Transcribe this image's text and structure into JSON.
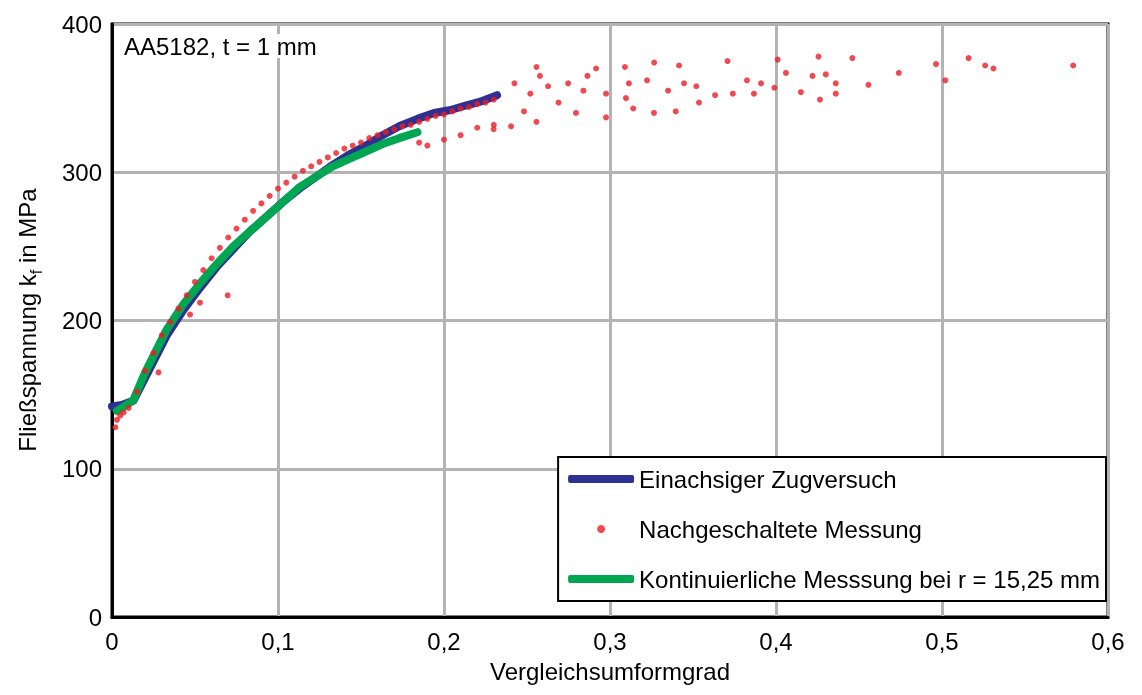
{
  "chart_data": {
    "type": "line",
    "xlabel": "Vergleichsumformgrad",
    "ylabel": "Fließspannung k$_{f}$ in MPa",
    "annotations": [
      "AA5182, t = 1 mm"
    ],
    "xlim": [
      0,
      0.6
    ],
    "xticks": [
      {
        "value": 0,
        "label": "0"
      },
      {
        "value": 0.1,
        "label": "0,1"
      },
      {
        "value": 0.2,
        "label": "0,2"
      },
      {
        "value": 0.3,
        "label": "0,3"
      },
      {
        "value": 0.4,
        "label": "0,4"
      },
      {
        "value": 0.5,
        "label": "0,5"
      },
      {
        "value": 0.6,
        "label": "0,6"
      }
    ],
    "ylim": [
      0,
      400
    ],
    "yticks": [
      0,
      100,
      200,
      300,
      400
    ],
    "grid": true,
    "legend": "bottom right",
    "series": [
      {
        "name": "Einachsiger Zugversuch",
        "marker": "none",
        "color": "#2e3192",
        "x": [
          0,
          0.006,
          0.013,
          0.023,
          0.033,
          0.043,
          0.053,
          0.063,
          0.073,
          0.083,
          0.093,
          0.103,
          0.113,
          0.123,
          0.133,
          0.143,
          0.153,
          0.163,
          0.173,
          0.184,
          0.194,
          0.204,
          0.213,
          0.223,
          0.232
        ],
        "values": [
          142,
          143,
          146,
          168,
          190,
          207,
          222,
          236,
          248,
          260,
          270,
          280,
          289,
          297,
          305,
          312,
          318,
          325,
          331,
          336,
          340,
          342,
          345,
          348,
          352
        ]
      },
      {
        "name": "Nachgeschaltete Messung",
        "type": "scatter",
        "marker": "circle",
        "color": "#ed1c24",
        "x": [
          0.002,
          0.003,
          0.005,
          0.007,
          0.01,
          0.015,
          0.02,
          0.025,
          0.03,
          0.035,
          0.04,
          0.045,
          0.05,
          0.055,
          0.06,
          0.065,
          0.07,
          0.075,
          0.08,
          0.085,
          0.09,
          0.095,
          0.1,
          0.105,
          0.11,
          0.115,
          0.12,
          0.125,
          0.13,
          0.135,
          0.14,
          0.145,
          0.15,
          0.155,
          0.16,
          0.165,
          0.17,
          0.175,
          0.18,
          0.185,
          0.19,
          0.195,
          0.2,
          0.205,
          0.21,
          0.215,
          0.22,
          0.225,
          0.23,
          0.028,
          0.047,
          0.053,
          0.0697,
          0.185,
          0.19,
          0.2,
          0.21,
          0.22,
          0.23,
          0.2299,
          0.2404,
          0.2424,
          0.2482,
          0.252,
          0.2557,
          0.2557,
          0.2578,
          0.2627,
          0.269,
          0.2748,
          0.2795,
          0.284,
          0.2864,
          0.2916,
          0.2976,
          0.2976,
          0.309,
          0.3096,
          0.3114,
          0.314,
          0.3223,
          0.3265,
          0.3266,
          0.335,
          0.3396,
          0.3416,
          0.3446,
          0.352,
          0.3536,
          0.3633,
          0.3708,
          0.374,
          0.3825,
          0.3867,
          0.391,
          0.399,
          0.401,
          0.406,
          0.415,
          0.422,
          0.4256,
          0.4265,
          0.43,
          0.436,
          0.436,
          0.446,
          0.4557,
          0.474,
          0.4964,
          0.502,
          0.516,
          0.526,
          0.531,
          0.579
        ],
        "values": [
          128,
          133,
          136,
          138,
          141,
          152,
          166,
          178,
          190,
          199,
          208,
          217,
          226,
          234,
          242,
          249,
          256,
          262,
          268,
          274,
          279,
          284,
          289,
          293,
          297,
          301,
          304,
          307,
          310,
          313,
          316,
          318,
          320,
          323,
          325,
          327,
          329,
          331,
          332,
          334,
          336,
          338,
          339,
          341,
          343,
          344,
          346,
          347,
          349,
          165,
          204,
          212,
          217,
          320,
          318,
          322,
          325,
          330,
          332,
          329,
          331,
          360,
          341,
          353,
          334,
          371,
          365,
          358,
          347,
          360,
          340,
          355,
          365,
          370,
          353,
          337,
          371,
          350,
          360,
          343,
          362,
          340,
          374,
          355,
          341,
          372,
          360,
          358,
          347,
          352,
          375,
          353,
          362,
          353,
          360,
          357,
          376,
          367,
          354,
          365,
          378,
          349,
          366,
          360,
          353,
          377,
          359,
          367,
          373,
          362,
          377,
          372,
          370,
          372
        ]
      },
      {
        "name": "Kontinuierliche Messsung bei r = 15,25 mm",
        "marker": "none",
        "color": "#00a651",
        "x": [
          0.003,
          0.0127,
          0.02,
          0.033,
          0.043,
          0.053,
          0.063,
          0.073,
          0.083,
          0.093,
          0.103,
          0.113,
          0.123,
          0.133,
          0.143,
          0.153,
          0.163,
          0.173,
          0.184
        ],
        "values": [
          139,
          146,
          165,
          194,
          211,
          225,
          238,
          250,
          260,
          270,
          280,
          290,
          297,
          304,
          309,
          314,
          319,
          323,
          327
        ]
      }
    ]
  }
}
